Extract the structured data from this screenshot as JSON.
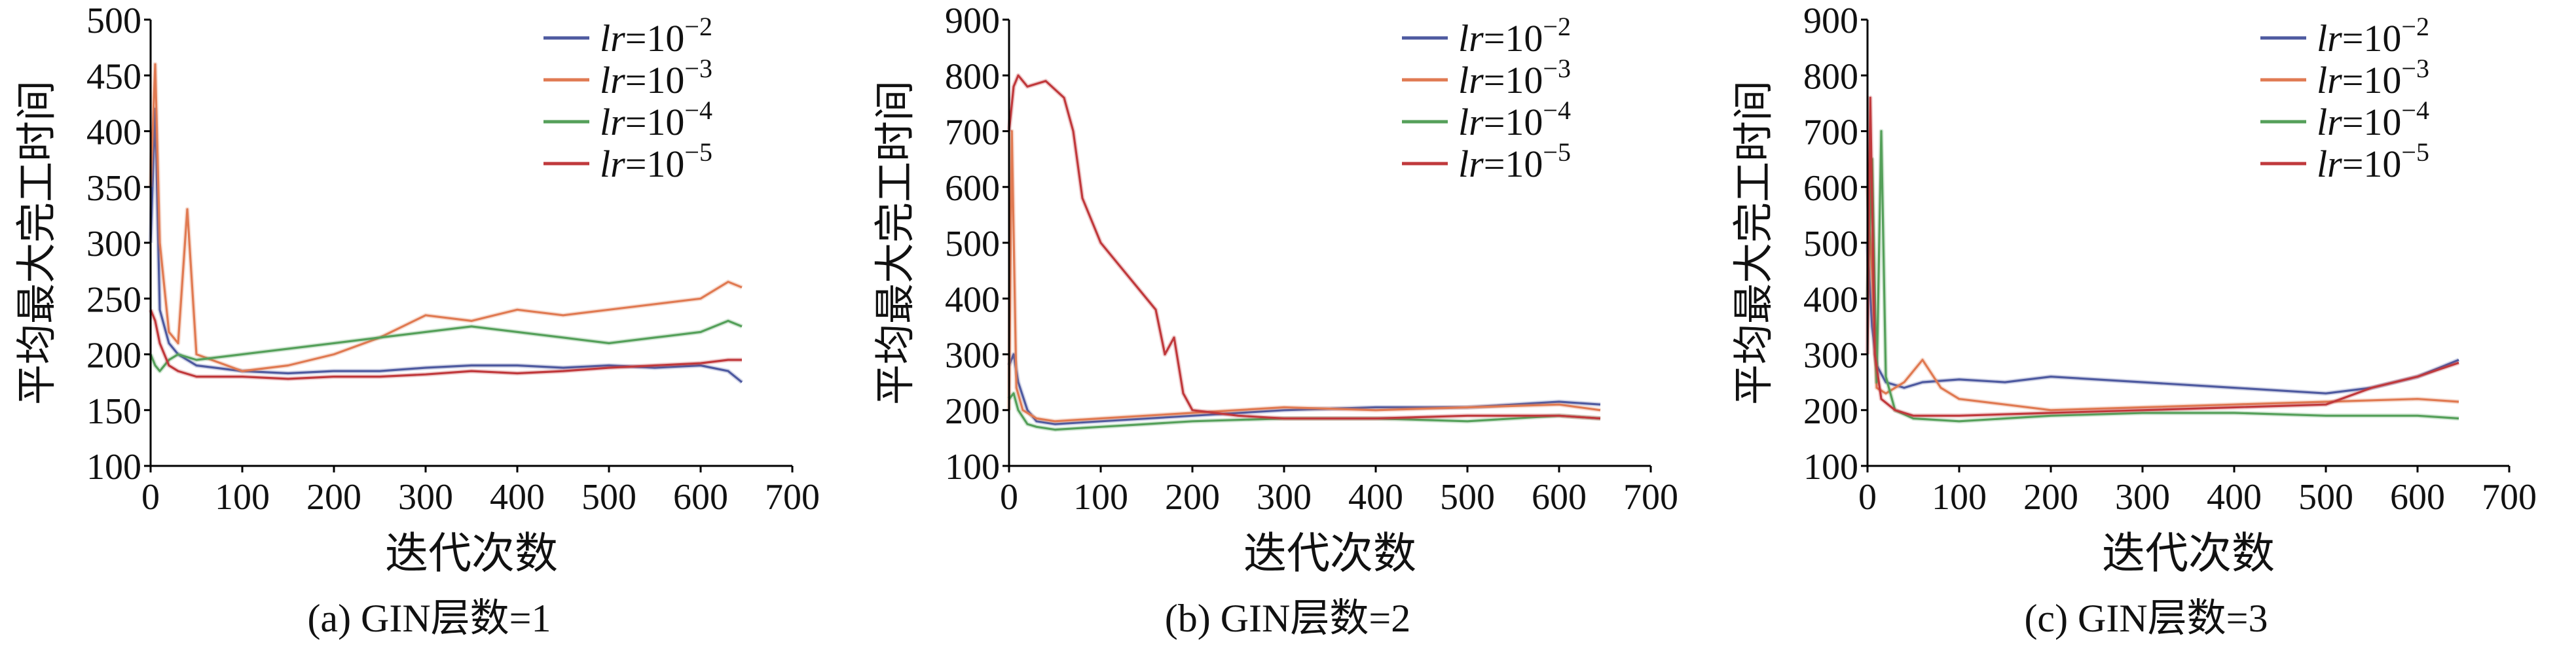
{
  "legend_prefix": "lr=10",
  "legend_labels": [
    "lr=10⁻²",
    "lr=10⁻³",
    "lr=10⁻⁴",
    "lr=10⁻⁵"
  ],
  "legend_exponents": [
    "−2",
    "−3",
    "−4",
    "−5"
  ],
  "series_colors": [
    "#4e5aa0",
    "#e07a52",
    "#55a05a",
    "#c0393c"
  ],
  "chart_data": [
    {
      "type": "line",
      "caption": "(a) GIN层数=1",
      "xlabel": "迭代次数",
      "ylabel": "平均最大完工时间",
      "xlim": [
        0,
        700
      ],
      "ylim": [
        100,
        500
      ],
      "xticks": [
        0,
        100,
        200,
        300,
        400,
        500,
        600,
        700
      ],
      "yticks": [
        100,
        150,
        200,
        250,
        300,
        350,
        400,
        450,
        500
      ],
      "legend_position": "top-right",
      "grid": false,
      "series": [
        {
          "name": "lr=10⁻²",
          "color": "#4e5aa0",
          "x": [
            0,
            5,
            10,
            20,
            30,
            50,
            100,
            150,
            200,
            250,
            300,
            350,
            400,
            450,
            500,
            550,
            600,
            630,
            645
          ],
          "y": [
            300,
            420,
            240,
            210,
            200,
            190,
            185,
            183,
            185,
            185,
            188,
            190,
            190,
            188,
            190,
            188,
            190,
            185,
            175
          ]
        },
        {
          "name": "lr=10⁻³",
          "color": "#e07a52",
          "x": [
            0,
            5,
            10,
            20,
            30,
            40,
            50,
            100,
            150,
            200,
            250,
            300,
            350,
            400,
            450,
            500,
            550,
            600,
            630,
            645
          ],
          "y": [
            350,
            460,
            300,
            220,
            210,
            330,
            200,
            185,
            190,
            200,
            215,
            235,
            230,
            240,
            235,
            240,
            245,
            250,
            265,
            260
          ]
        },
        {
          "name": "lr=10⁻⁴",
          "color": "#55a05a",
          "x": [
            0,
            5,
            10,
            20,
            30,
            50,
            100,
            150,
            200,
            250,
            300,
            350,
            400,
            450,
            500,
            550,
            600,
            630,
            645
          ],
          "y": [
            200,
            190,
            185,
            195,
            200,
            195,
            200,
            205,
            210,
            215,
            220,
            225,
            220,
            215,
            210,
            215,
            220,
            230,
            225
          ]
        },
        {
          "name": "lr=10⁻⁵",
          "color": "#c0393c",
          "x": [
            0,
            5,
            10,
            20,
            30,
            50,
            100,
            150,
            200,
            250,
            300,
            350,
            400,
            450,
            500,
            550,
            600,
            630,
            645
          ],
          "y": [
            240,
            230,
            210,
            190,
            185,
            180,
            180,
            178,
            180,
            180,
            182,
            185,
            183,
            185,
            188,
            190,
            192,
            195,
            195
          ]
        }
      ]
    },
    {
      "type": "line",
      "caption": "(b) GIN层数=2",
      "xlabel": "迭代次数",
      "ylabel": "平均最大完工时间",
      "xlim": [
        0,
        700
      ],
      "ylim": [
        100,
        900
      ],
      "xticks": [
        0,
        100,
        200,
        300,
        400,
        500,
        600,
        700
      ],
      "yticks": [
        100,
        200,
        300,
        400,
        500,
        600,
        700,
        800,
        900
      ],
      "legend_position": "top-right",
      "grid": false,
      "series": [
        {
          "name": "lr=10⁻²",
          "color": "#4e5aa0",
          "x": [
            0,
            5,
            10,
            20,
            30,
            50,
            100,
            200,
            300,
            400,
            500,
            600,
            645
          ],
          "y": [
            280,
            300,
            250,
            200,
            180,
            175,
            180,
            190,
            200,
            205,
            205,
            215,
            210
          ]
        },
        {
          "name": "lr=10⁻³",
          "color": "#e07a52",
          "x": [
            0,
            3,
            8,
            15,
            30,
            50,
            100,
            200,
            300,
            400,
            500,
            600,
            645
          ],
          "y": [
            200,
            700,
            240,
            200,
            185,
            180,
            185,
            195,
            205,
            200,
            205,
            210,
            200
          ]
        },
        {
          "name": "lr=10⁻⁴",
          "color": "#55a05a",
          "x": [
            0,
            5,
            10,
            20,
            30,
            50,
            100,
            150,
            200,
            300,
            400,
            500,
            600,
            645
          ],
          "y": [
            220,
            230,
            200,
            175,
            170,
            165,
            170,
            175,
            180,
            185,
            185,
            180,
            190,
            185
          ]
        },
        {
          "name": "lr=10⁻⁵",
          "color": "#c0393c",
          "x": [
            0,
            5,
            10,
            20,
            40,
            60,
            70,
            80,
            100,
            120,
            140,
            160,
            170,
            180,
            190,
            200,
            250,
            300,
            400,
            500,
            600,
            645
          ],
          "y": [
            700,
            780,
            800,
            780,
            790,
            760,
            700,
            580,
            500,
            460,
            420,
            380,
            300,
            330,
            230,
            200,
            190,
            185,
            185,
            190,
            190,
            185
          ]
        }
      ]
    },
    {
      "type": "line",
      "caption": "(c) GIN层数=3",
      "xlabel": "迭代次数",
      "ylabel": "平均最大完工时间",
      "xlim": [
        0,
        700
      ],
      "ylim": [
        100,
        900
      ],
      "xticks": [
        0,
        100,
        200,
        300,
        400,
        500,
        600,
        700
      ],
      "yticks": [
        100,
        200,
        300,
        400,
        500,
        600,
        700,
        800,
        900
      ],
      "legend_position": "top-right",
      "grid": false,
      "series": [
        {
          "name": "lr=10⁻²",
          "color": "#4e5aa0",
          "x": [
            0,
            5,
            10,
            20,
            40,
            60,
            100,
            150,
            200,
            300,
            400,
            500,
            550,
            600,
            645
          ],
          "y": [
            500,
            350,
            280,
            250,
            240,
            250,
            255,
            250,
            260,
            250,
            240,
            230,
            240,
            260,
            290
          ]
        },
        {
          "name": "lr=10⁻³",
          "color": "#e07a52",
          "x": [
            0,
            5,
            10,
            20,
            40,
            60,
            80,
            100,
            150,
            200,
            300,
            400,
            500,
            600,
            645
          ],
          "y": [
            600,
            450,
            240,
            230,
            250,
            290,
            240,
            220,
            210,
            200,
            205,
            210,
            215,
            220,
            215
          ]
        },
        {
          "name": "lr=10⁻⁴",
          "color": "#55a05a",
          "x": [
            0,
            5,
            10,
            15,
            20,
            30,
            50,
            100,
            150,
            200,
            300,
            400,
            500,
            600,
            645
          ],
          "y": [
            400,
            650,
            250,
            700,
            260,
            200,
            185,
            180,
            185,
            190,
            195,
            195,
            190,
            190,
            185
          ]
        },
        {
          "name": "lr=10⁻⁵",
          "color": "#c0393c",
          "x": [
            0,
            3,
            8,
            15,
            30,
            50,
            100,
            200,
            300,
            400,
            500,
            550,
            600,
            645
          ],
          "y": [
            300,
            760,
            300,
            220,
            200,
            190,
            190,
            195,
            200,
            205,
            210,
            240,
            260,
            285
          ]
        }
      ]
    }
  ]
}
